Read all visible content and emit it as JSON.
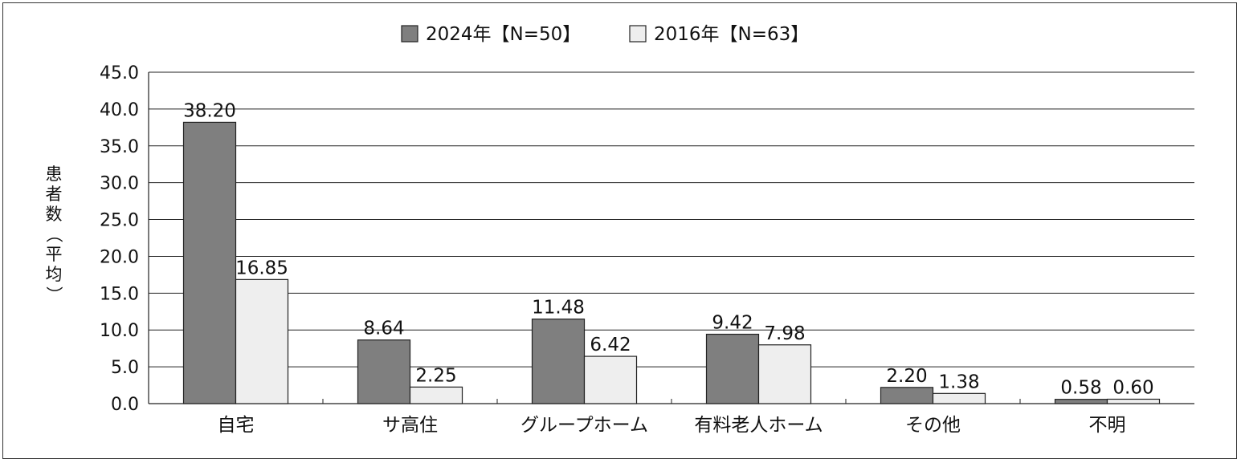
{
  "chart_data": {
    "type": "bar",
    "title": "",
    "xlabel": "",
    "ylabel": "患者数（平均）",
    "ylim": [
      0,
      45
    ],
    "ytick_step": 5,
    "ytick_decimals": 1,
    "value_decimals": 2,
    "grid": true,
    "legend_position": "top-center",
    "categories": [
      "自宅",
      "サ高住",
      "グループホーム",
      "有料老人ホーム",
      "その他",
      "不明"
    ],
    "series": [
      {
        "name": "2024年【N=50】",
        "color": "#7f7f7f",
        "values": [
          38.2,
          8.64,
          11.48,
          9.42,
          2.2,
          0.58
        ]
      },
      {
        "name": "2016年【N=63】",
        "color": "#eeeeee",
        "values": [
          16.85,
          2.25,
          6.42,
          7.98,
          1.38,
          0.6
        ]
      }
    ]
  }
}
